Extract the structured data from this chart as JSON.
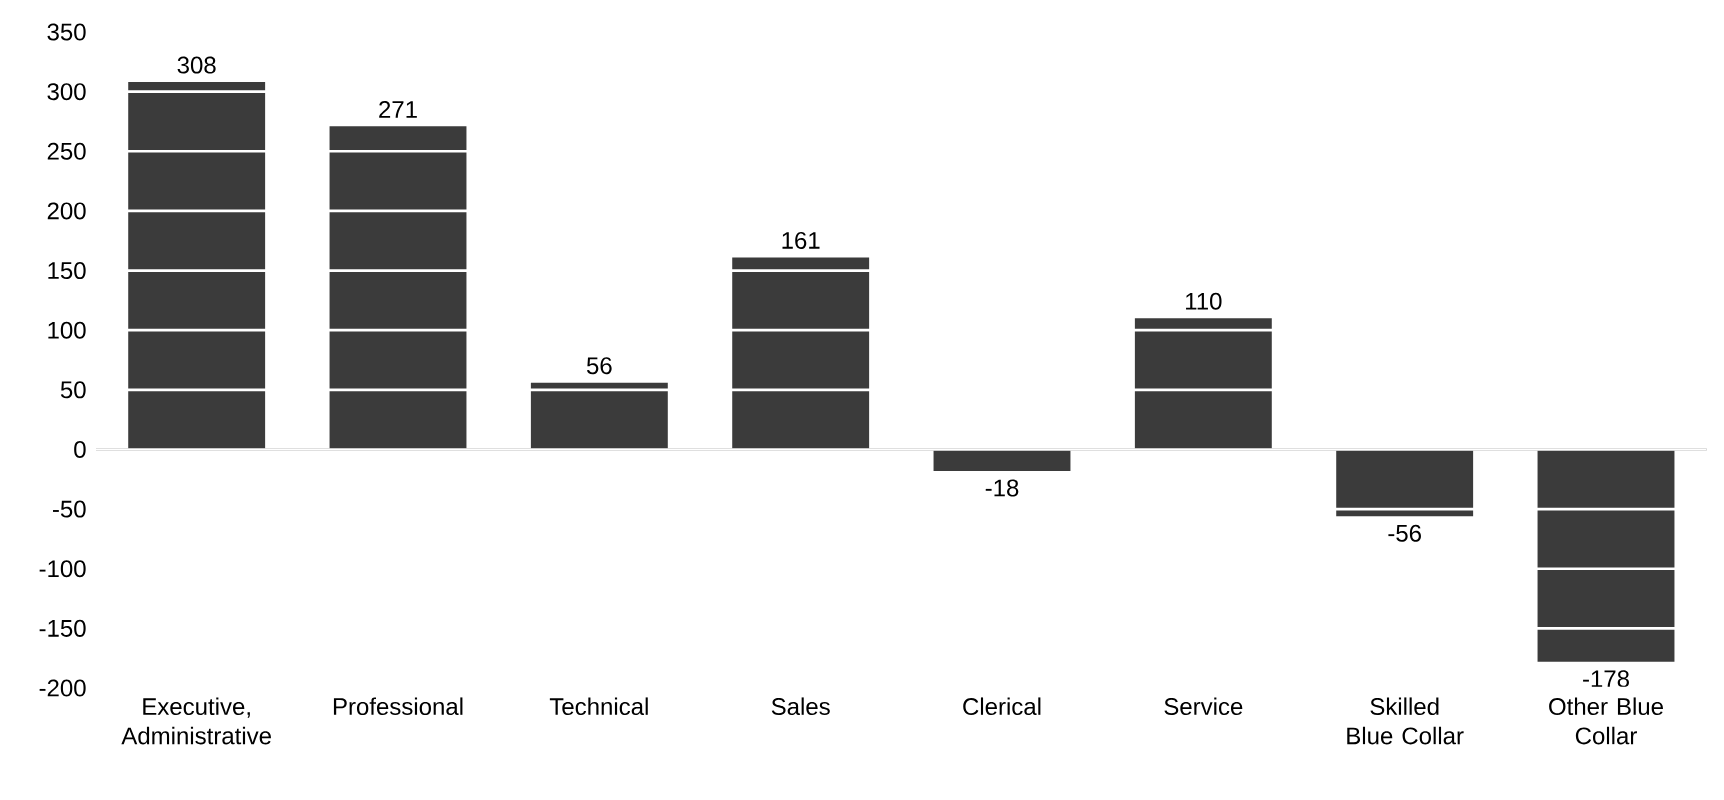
{
  "chart_data": {
    "type": "bar",
    "categories": [
      "Executive, Administrative",
      "Professional",
      "Technical",
      "Sales",
      "Clerical",
      "Service",
      "Skilled Blue Collar",
      "Other Blue Collar"
    ],
    "values": [
      308,
      271,
      56,
      161,
      -18,
      110,
      -56,
      -178
    ],
    "color": "#3b3b3b",
    "ylim": [
      -200,
      350
    ],
    "yticks": [
      -200,
      -150,
      -100,
      -50,
      0,
      50,
      100,
      150,
      200,
      250,
      300,
      350
    ],
    "data_labels": true,
    "grid": "y"
  }
}
